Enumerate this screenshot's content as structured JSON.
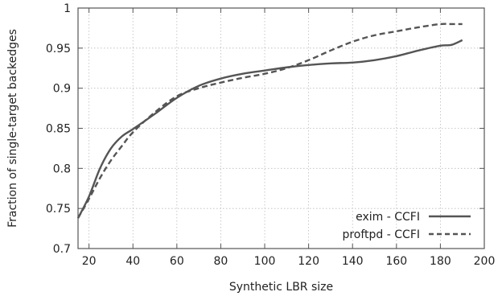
{
  "chart_data": {
    "type": "line",
    "title": "",
    "xlabel": "Synthetic LBR size",
    "ylabel": "Fraction of single-target backedges",
    "xlim": [
      15,
      200
    ],
    "ylim": [
      0.7,
      1.0
    ],
    "xticks": [
      20,
      40,
      60,
      80,
      100,
      120,
      140,
      160,
      180,
      200
    ],
    "yticks": [
      0.7,
      0.75,
      0.8,
      0.85,
      0.9,
      0.95,
      1.0
    ],
    "xtick_labels": [
      "20",
      "40",
      "60",
      "80",
      "100",
      "120",
      "140",
      "160",
      "180",
      "200"
    ],
    "ytick_labels": [
      "0.7",
      "0.75",
      "0.8",
      "0.85",
      "0.9",
      "0.95",
      "1"
    ],
    "grid": true,
    "legend_position": "bottom-right",
    "series": [
      {
        "name": "exim - CCFI",
        "style": "solid",
        "color": "#555555",
        "x": [
          15,
          20,
          25,
          30,
          35,
          40,
          50,
          60,
          70,
          80,
          90,
          100,
          110,
          120,
          130,
          140,
          150,
          160,
          170,
          180,
          185,
          190
        ],
        "y": [
          0.738,
          0.765,
          0.8,
          0.825,
          0.84,
          0.849,
          0.868,
          0.888,
          0.903,
          0.912,
          0.918,
          0.922,
          0.926,
          0.929,
          0.931,
          0.932,
          0.935,
          0.94,
          0.947,
          0.953,
          0.954,
          0.96
        ]
      },
      {
        "name": "proftpd - CCFI",
        "style": "dashed",
        "color": "#555555",
        "x": [
          15,
          20,
          25,
          30,
          35,
          40,
          50,
          60,
          70,
          80,
          90,
          100,
          110,
          120,
          130,
          140,
          150,
          160,
          170,
          180,
          185,
          190
        ],
        "y": [
          0.738,
          0.762,
          0.788,
          0.81,
          0.828,
          0.845,
          0.87,
          0.89,
          0.9,
          0.907,
          0.913,
          0.918,
          0.925,
          0.935,
          0.947,
          0.958,
          0.966,
          0.971,
          0.976,
          0.98,
          0.98,
          0.98
        ]
      }
    ]
  }
}
